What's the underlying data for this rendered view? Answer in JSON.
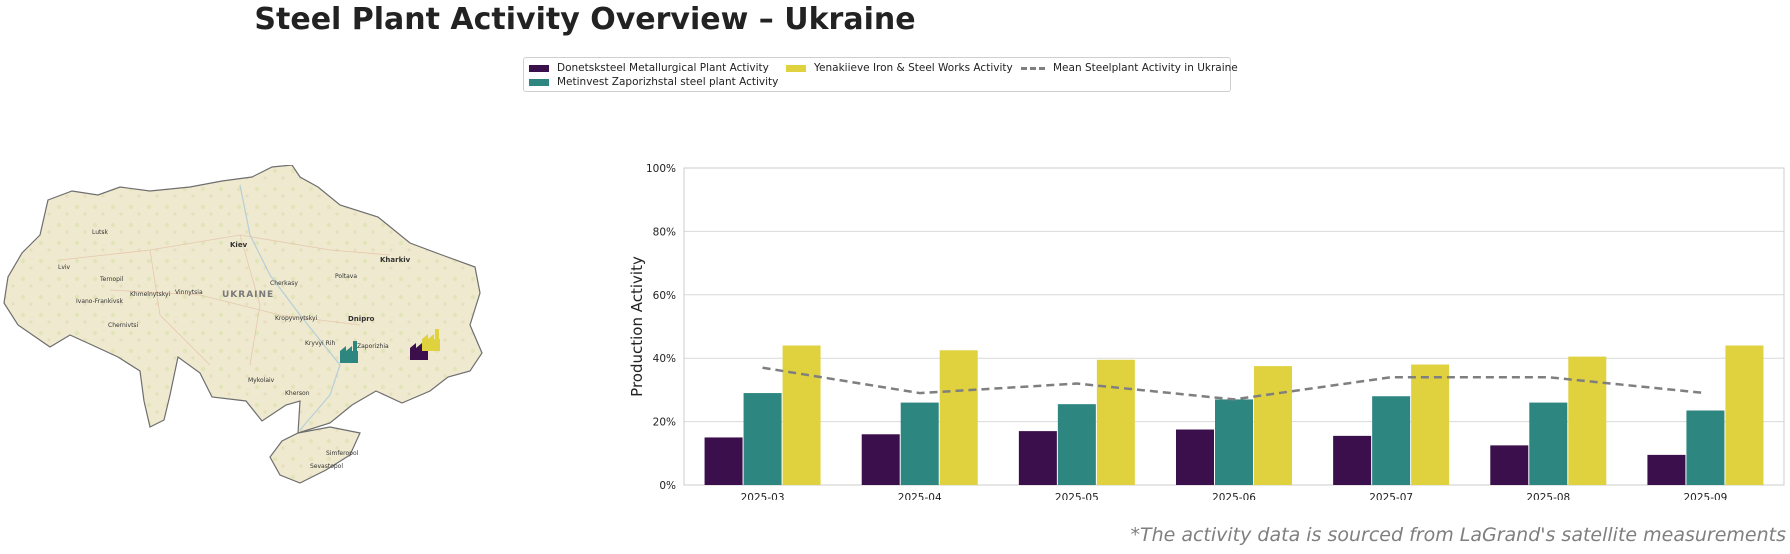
{
  "title": "Steel Plant Activity Overview – Ukraine",
  "footnote": "*The activity data is sourced from LaGrand's satellite measurements",
  "legend": {
    "items": [
      {
        "label": "Donetsksteel Metallurgical Plant Activity",
        "color": "#3b0f4b",
        "kind": "bar"
      },
      {
        "label": "Metinvest Zaporizhstal steel plant Activity",
        "color": "#2e8680",
        "kind": "bar"
      },
      {
        "label": "Yenakiieve Iron & Steel Works Activity",
        "color": "#e0d13f",
        "kind": "bar"
      },
      {
        "label": "Mean Steelplant Activity in Ukraine",
        "color": "#7f7f7f",
        "kind": "dashed-line"
      }
    ]
  },
  "map": {
    "country_label": "UKRAINE",
    "cities": [
      "Lutsk",
      "Kiev",
      "Kharkiv",
      "Lviv",
      "Ternopil",
      "Khmelnytskyi",
      "Vinnytsia",
      "Cherkasy",
      "Poltava",
      "Ivano-Frankivsk",
      "Chernivtsi",
      "Kropyvnytskyi",
      "Dnipro",
      "Kryvyi Rih",
      "Zaporizhia",
      "Mykolaiv",
      "Kherson",
      "Simferopol",
      "Sevastopol"
    ],
    "plant_icons": [
      {
        "name": "Metinvest Zaporizhstal",
        "color": "#2e8680"
      },
      {
        "name": "Donetsksteel",
        "color": "#3b0f4b"
      },
      {
        "name": "Yenakiieve",
        "color": "#e0d13f"
      }
    ]
  },
  "chart_data": {
    "type": "bar",
    "categories": [
      "2025-03",
      "2025-04",
      "2025-05",
      "2025-06",
      "2025-07",
      "2025-08",
      "2025-09"
    ],
    "series": [
      {
        "name": "Donetsksteel Metallurgical Plant Activity",
        "color": "#3b0f4b",
        "values": [
          15,
          16,
          17,
          17.5,
          15.5,
          12.5,
          9.5
        ]
      },
      {
        "name": "Metinvest Zaporizhstal steel plant Activity",
        "color": "#2e8680",
        "values": [
          29,
          26,
          25.5,
          27,
          28,
          26,
          23.5
        ]
      },
      {
        "name": "Yenakiieve Iron & Steel Works Activity",
        "color": "#e0d13f",
        "values": [
          44,
          42.5,
          39.5,
          37.5,
          38,
          40.5,
          44
        ]
      }
    ],
    "line": {
      "name": "Mean Steelplant Activity in Ukraine",
      "color": "#7f7f7f",
      "style": "dashed",
      "values": [
        37,
        29,
        32,
        27,
        34,
        34,
        29
      ]
    },
    "ylabel": "Production Activity",
    "ylim": [
      0,
      100
    ],
    "yticks": [
      "0%",
      "20%",
      "40%",
      "60%",
      "80%",
      "100%"
    ],
    "grid": true,
    "legend_position": "top-center"
  }
}
